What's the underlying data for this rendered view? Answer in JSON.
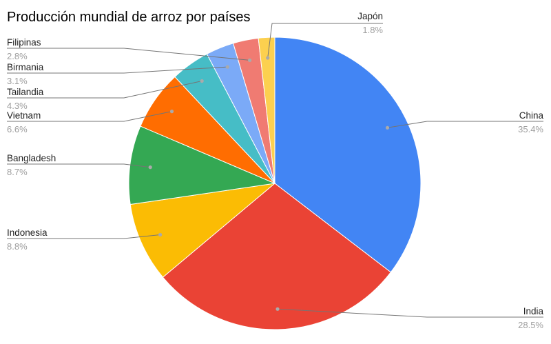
{
  "chart_data": {
    "type": "pie",
    "title": "Producción mundial de arroz por países",
    "slices": [
      {
        "label": "China",
        "value": 35.4,
        "pct_label": "35.4%",
        "color": "#4285F4"
      },
      {
        "label": "India",
        "value": 28.5,
        "pct_label": "28.5%",
        "color": "#EA4335"
      },
      {
        "label": "Indonesia",
        "value": 8.8,
        "pct_label": "8.8%",
        "color": "#FBBC04"
      },
      {
        "label": "Bangladesh",
        "value": 8.7,
        "pct_label": "8.7%",
        "color": "#34A853"
      },
      {
        "label": "Vietnam",
        "value": 6.6,
        "pct_label": "6.6%",
        "color": "#FF6D01"
      },
      {
        "label": "Tailandia",
        "value": 4.3,
        "pct_label": "4.3%",
        "color": "#46BDC6"
      },
      {
        "label": "Birmania",
        "value": 3.1,
        "pct_label": "3.1%",
        "color": "#7BAAF7"
      },
      {
        "label": "Filipinas",
        "value": 2.8,
        "pct_label": "2.8%",
        "color": "#F07B72"
      },
      {
        "label": "Japón",
        "value": 1.8,
        "pct_label": "1.8%",
        "color": "#FCD04F"
      }
    ],
    "legend": "none"
  }
}
